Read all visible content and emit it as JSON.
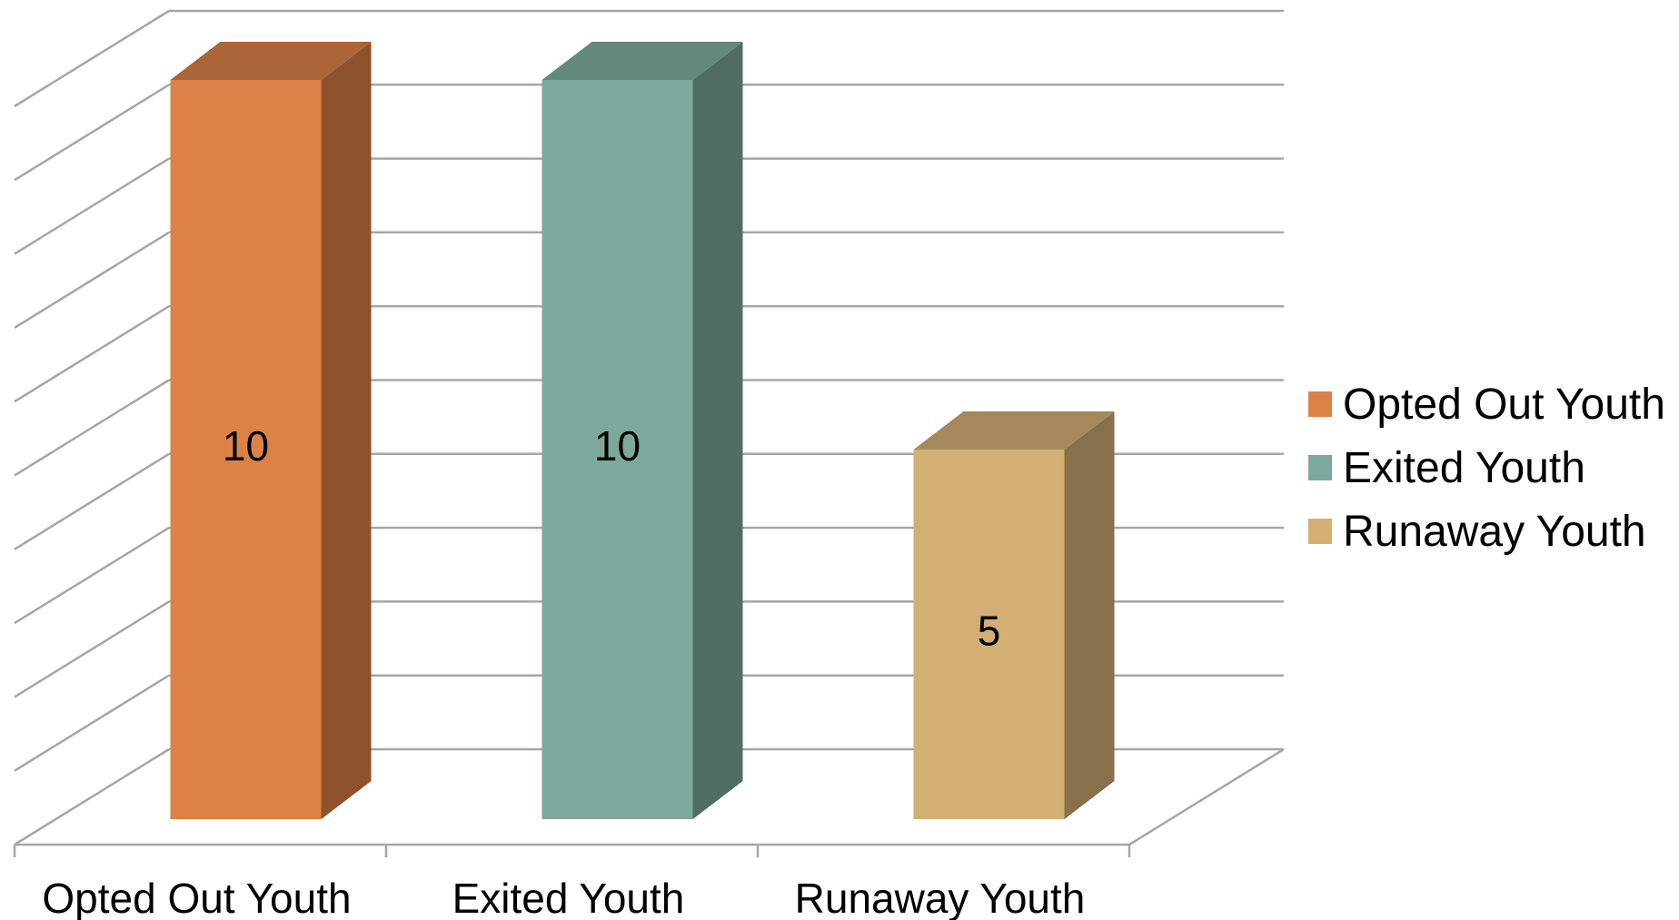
{
  "chart_data": {
    "type": "bar",
    "style": "3d-column",
    "categories": [
      "Opted Out Youth",
      "Exited Youth",
      "Runaway Youth"
    ],
    "values": [
      10,
      10,
      5
    ],
    "ylim": [
      0,
      10
    ],
    "grid": true,
    "legend_position": "right",
    "legend": [
      {
        "label": "Opted Out Youth",
        "color": "#dc8247"
      },
      {
        "label": "Exited Youth",
        "color": "#7ca89d"
      },
      {
        "label": "Runaway Youth",
        "color": "#d2b074"
      }
    ],
    "colors": {
      "Opted Out Youth": {
        "front": "#dc8247",
        "side": "#8d522c",
        "top": "#ac6537"
      },
      "Exited Youth": {
        "front": "#7ca89d",
        "side": "#506d65",
        "top": "#63887e"
      },
      "Runaway Youth": {
        "front": "#d2b074",
        "side": "#88704a",
        "top": "#a5895a"
      }
    },
    "grid_color": "#a6a6a6"
  }
}
